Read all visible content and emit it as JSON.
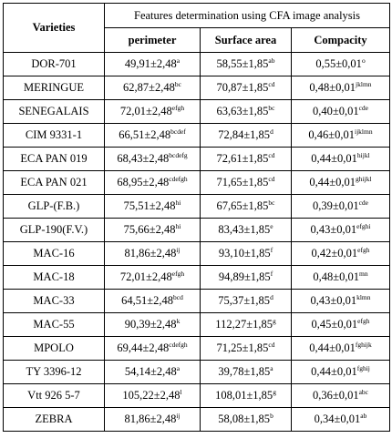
{
  "table": {
    "header_varieties": "Varieties",
    "header_group": "Features determination using CFA image analysis",
    "columns": [
      "perimeter",
      "Surface area",
      "Compacity"
    ],
    "rows": [
      {
        "variety": "DOR-701",
        "perimeter": "49,91±2,48",
        "perimeter_sup": "a",
        "surface": "58,55±1,85",
        "surface_sup": "ab",
        "compacity": "0,55±0,01",
        "compacity_sup": "o"
      },
      {
        "variety": "MERINGUE",
        "perimeter": "62,87±2,48",
        "perimeter_sup": "bc",
        "surface": "70,87±1,85",
        "surface_sup": "cd",
        "compacity": "0,48±0,01",
        "compacity_sup": "jklmn"
      },
      {
        "variety": "SENEGALAIS",
        "perimeter": "72,01±2,48",
        "perimeter_sup": "efgh",
        "surface": "63,63±1,85",
        "surface_sup": "bc",
        "compacity": "0,40±0,01",
        "compacity_sup": "cde"
      },
      {
        "variety": "CIM 9331-1",
        "perimeter": "66,51±2,48",
        "perimeter_sup": "bcdef",
        "surface": "72,84±1,85",
        "surface_sup": "d",
        "compacity": "0,46±0,01",
        "compacity_sup": "ijklmn"
      },
      {
        "variety": "ECA PAN 019",
        "perimeter": "68,43±2,48",
        "perimeter_sup": "bcdefg",
        "surface": "72,61±1,85",
        "surface_sup": "cd",
        "compacity": "0,44±0,01",
        "compacity_sup": "hijkl"
      },
      {
        "variety": "ECA PAN 021",
        "perimeter": "68,95±2,48",
        "perimeter_sup": "cdefgh",
        "surface": "71,65±1,85",
        "surface_sup": "cd",
        "compacity": "0,44±0,01",
        "compacity_sup": "ghijkl"
      },
      {
        "variety": "GLP-(F.B.)",
        "perimeter": "75,51±2,48",
        "perimeter_sup": "hi",
        "surface": "67,65±1,85",
        "surface_sup": "bc",
        "compacity": "0,39±0,01",
        "compacity_sup": "cde"
      },
      {
        "variety": "GLP-190(F.V.)",
        "perimeter": "75,66±2,48",
        "perimeter_sup": "hi",
        "surface": "83,43±1,85",
        "surface_sup": "e",
        "compacity": "0,43±0,01",
        "compacity_sup": "efghi"
      },
      {
        "variety": "MAC-16",
        "perimeter": "81,86±2,48",
        "perimeter_sup": "ij",
        "surface": "93,10±1,85",
        "surface_sup": "f",
        "compacity": "0,42±0,01",
        "compacity_sup": "efgh"
      },
      {
        "variety": "MAC-18",
        "perimeter": "72,01±2,48",
        "perimeter_sup": "efgh",
        "surface": "94,89±1,85",
        "surface_sup": "f",
        "compacity": "0,48±0,01",
        "compacity_sup": "mn"
      },
      {
        "variety": "MAC-33",
        "perimeter": "64,51±2,48",
        "perimeter_sup": "bcd",
        "surface": "75,37±1,85",
        "surface_sup": "d",
        "compacity": "0,43±0,01",
        "compacity_sup": "klmn"
      },
      {
        "variety": "MAC-55",
        "perimeter": "90,39±2,48",
        "perimeter_sup": "k",
        "surface": "112,27±1,85",
        "surface_sup": "g",
        "compacity": "0,45±0,01",
        "compacity_sup": "efgh"
      },
      {
        "variety": "MPOLO",
        "perimeter": "69,44±2,48",
        "perimeter_sup": "cdefgh",
        "surface": "71,25±1,85",
        "surface_sup": "cd",
        "compacity": "0,44±0,01",
        "compacity_sup": "fghijk"
      },
      {
        "variety": "TY 3396-12",
        "perimeter": "54,14±2,48",
        "perimeter_sup": "a",
        "surface": "39,78±1,85",
        "surface_sup": "a",
        "compacity": "0,44±0,01",
        "compacity_sup": "fghij"
      },
      {
        "variety": "Vtt 926 5-7",
        "perimeter": "105,22±2,48",
        "perimeter_sup": "l",
        "surface": "108,01±1,85",
        "surface_sup": "g",
        "compacity": "0,36±0,01",
        "compacity_sup": "abc"
      },
      {
        "variety": "ZEBRA",
        "perimeter": "81,86±2,48",
        "perimeter_sup": "ij",
        "surface": "58,08±1,85",
        "surface_sup": "b",
        "compacity": "0,34±0,01",
        "compacity_sup": "ab"
      }
    ]
  }
}
